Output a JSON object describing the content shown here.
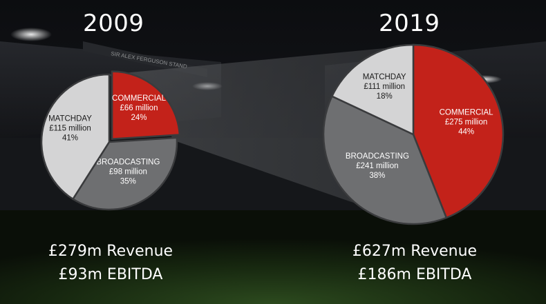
{
  "chart_data": [
    {
      "type": "pie",
      "title": "2009",
      "slices": [
        {
          "label": "COMMERCIAL",
          "amount": "£66 million",
          "pct_label": "24%",
          "value": 24,
          "color": "#c3221a"
        },
        {
          "label": "BROADCASTING",
          "amount": "£98 million",
          "pct_label": "35%",
          "value": 35,
          "color": "#6e6f71"
        },
        {
          "label": "MATCHDAY",
          "amount": "£115 million",
          "pct_label": "41%",
          "value": 41,
          "color": "#d4d4d5"
        }
      ],
      "exploded": "COMMERCIAL",
      "summary": {
        "revenue": "£279m Revenue",
        "ebitda": "£93m EBITDA"
      }
    },
    {
      "type": "pie",
      "title": "2019",
      "slices": [
        {
          "label": "COMMERCIAL",
          "amount": "£275 million",
          "pct_label": "44%",
          "value": 44,
          "color": "#c3221a"
        },
        {
          "label": "BROADCASTING",
          "amount": "£241 million",
          "pct_label": "38%",
          "value": 38,
          "color": "#6e6f71"
        },
        {
          "label": "MATCHDAY",
          "amount": "£111 million",
          "pct_label": "18%",
          "value": 18,
          "color": "#d4d4d5"
        }
      ],
      "summary": {
        "revenue": "£627m Revenue",
        "ebitda": "£186m EBITDA"
      }
    }
  ],
  "background_banner": "SIR ALEX FERGUSON STAND"
}
